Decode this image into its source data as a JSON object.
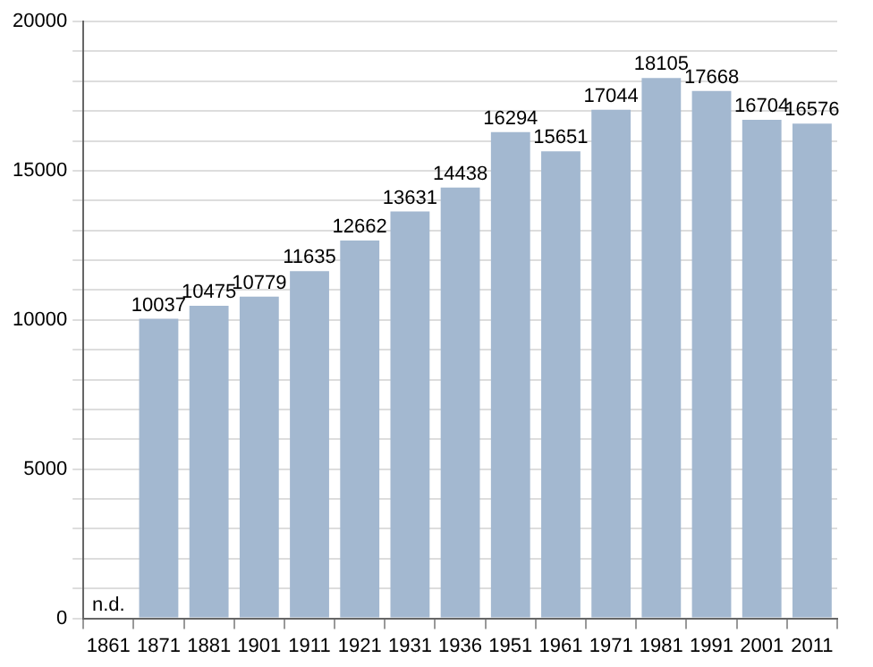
{
  "chart_data": {
    "type": "bar",
    "categories": [
      "1861",
      "1871",
      "1881",
      "1901",
      "1911",
      "1921",
      "1931",
      "1936",
      "1951",
      "1961",
      "1971",
      "1981",
      "1991",
      "2001",
      "2011"
    ],
    "values": [
      null,
      10037,
      10475,
      10779,
      11635,
      12662,
      13631,
      14438,
      16294,
      15651,
      17044,
      18105,
      17668,
      16704,
      16576
    ],
    "value_labels": [
      "n.d.",
      "10037",
      "10475",
      "10779",
      "11635",
      "12662",
      "13631",
      "14438",
      "16294",
      "15651",
      "17044",
      "18105",
      "17668",
      "16704",
      "16576"
    ],
    "color": "#a3b8d0",
    "ylim": [
      0,
      20000
    ],
    "yticks": [
      0,
      {
        "value": 1000,
        "label": null
      },
      {
        "value": 2000,
        "label": null
      },
      {
        "value": 3000,
        "label": null
      },
      {
        "value": 4000,
        "label": null
      },
      5000,
      {
        "value": 6000,
        "label": null
      },
      {
        "value": 7000,
        "label": null
      },
      {
        "value": 8000,
        "label": null
      },
      {
        "value": 9000,
        "label": null
      },
      10000,
      {
        "value": 11000,
        "label": null
      },
      {
        "value": 12000,
        "label": null
      },
      {
        "value": 13000,
        "label": null
      },
      {
        "value": 14000,
        "label": null
      },
      15000,
      {
        "value": 16000,
        "label": null
      },
      {
        "value": 17000,
        "label": null
      },
      {
        "value": 18000,
        "label": null
      },
      {
        "value": 19000,
        "label": null
      },
      20000
    ],
    "grid": "y"
  }
}
